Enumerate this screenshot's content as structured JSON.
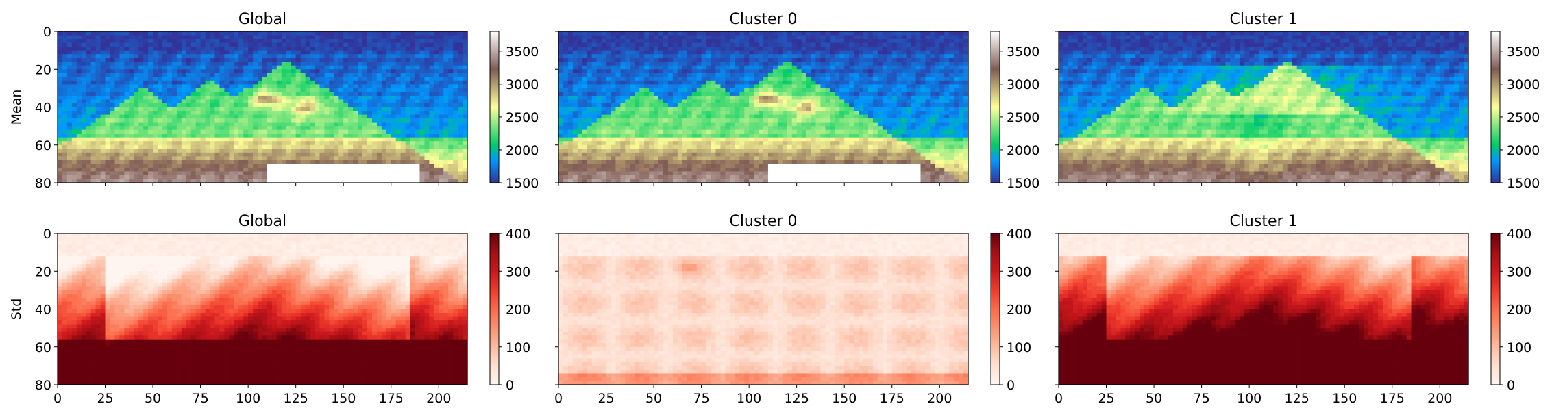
{
  "chart_data": {
    "type": "heatmap",
    "layout": "2x3 grid of heatmaps, each with a vertical colorbar",
    "x_range": [
      0,
      215
    ],
    "y_range": [
      0,
      80
    ],
    "y_inverted": true,
    "xticks": [
      "0",
      "25",
      "50",
      "75",
      "100",
      "125",
      "150",
      "175",
      "200"
    ],
    "xtick_values": [
      0,
      25,
      50,
      75,
      100,
      125,
      150,
      175,
      200
    ],
    "yticks": [
      "0",
      "20",
      "40",
      "60",
      "80"
    ],
    "ytick_values": [
      0,
      20,
      40,
      60,
      80
    ],
    "rows": [
      {
        "ylabel": "Mean",
        "colormap": "terrain",
        "clim": [
          1500,
          3800
        ],
        "colorbar_ticks": [
          "1500",
          "2000",
          "2500",
          "3000",
          "3500"
        ],
        "colorbar_tick_values": [
          1500,
          2000,
          2500,
          3000,
          3500
        ],
        "panels": [
          {
            "title": "Global",
            "variant": 0
          },
          {
            "title": "Cluster 0",
            "variant": 0
          },
          {
            "title": "Cluster 1",
            "variant": 1
          }
        ]
      },
      {
        "ylabel": "Std",
        "colormap": "Reds",
        "clim": [
          0,
          400
        ],
        "colorbar_ticks": [
          "0",
          "100",
          "200",
          "300",
          "400"
        ],
        "colorbar_tick_values": [
          0,
          100,
          200,
          300,
          400
        ],
        "panels": [
          {
            "title": "Global",
            "variant": 0
          },
          {
            "title": "Cluster 0",
            "variant": 1
          },
          {
            "title": "Cluster 1",
            "variant": 2
          }
        ]
      }
    ]
  }
}
